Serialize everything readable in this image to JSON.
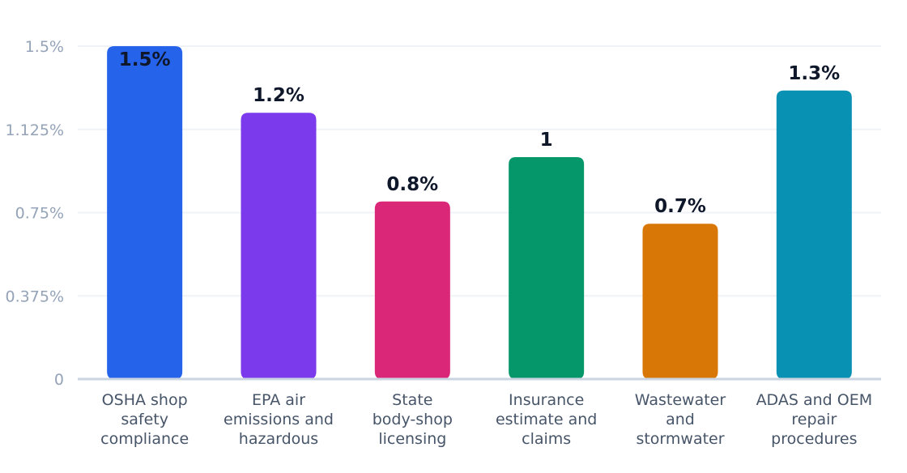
{
  "chart_data": {
    "type": "bar",
    "title": "",
    "xlabel": "",
    "ylabel": "",
    "ylim": [
      0,
      1.5
    ],
    "y_ticks": [
      {
        "value": 0,
        "label": "0"
      },
      {
        "value": 0.375,
        "label": "0.375%"
      },
      {
        "value": 0.75,
        "label": "0.75%"
      },
      {
        "value": 1.125,
        "label": "1.125%"
      },
      {
        "value": 1.5,
        "label": "1.5%"
      }
    ],
    "grid": true,
    "legend": "none",
    "categories": [
      [
        "OSHA shop",
        "safety",
        "compliance"
      ],
      [
        "EPA air",
        "emissions and",
        "hazardous"
      ],
      [
        "State",
        "body-shop",
        "licensing"
      ],
      [
        "Insurance",
        "estimate and",
        "claims"
      ],
      [
        "Wastewater",
        "and",
        "stormwater"
      ],
      [
        "ADAS and OEM",
        "repair",
        "procedures"
      ]
    ],
    "values": [
      1.5,
      1.2,
      0.8,
      1.0,
      0.7,
      1.3
    ],
    "value_labels": [
      "1.5%",
      "1.2%",
      "0.8%",
      "1",
      "0.7%",
      "1.3%"
    ],
    "colors": [
      "#2563eb",
      "#7c3aed",
      "#db2777",
      "#059669",
      "#d97706",
      "#0891b2"
    ]
  }
}
